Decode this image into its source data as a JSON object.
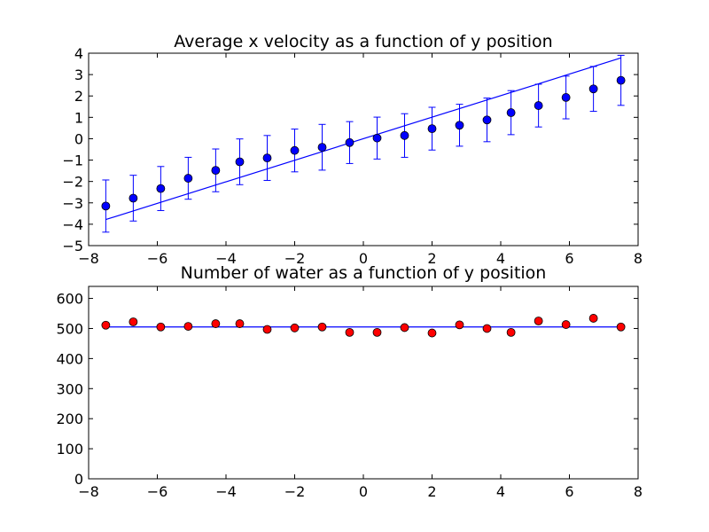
{
  "chart_data": [
    {
      "type": "scatter",
      "title": "Average x velocity as a function of y position",
      "xlabel": "",
      "ylabel": "",
      "xlim": [
        -8,
        8
      ],
      "ylim": [
        -5,
        4
      ],
      "xticks": [
        "−8",
        "−6",
        "−4",
        "−2",
        "0",
        "2",
        "4",
        "6",
        "8"
      ],
      "yticks": [
        "−5",
        "−4",
        "−3",
        "−2",
        "−1",
        "0",
        "1",
        "2",
        "3",
        "4"
      ],
      "grid": false,
      "marker_color": "#0000ff",
      "series": [
        {
          "type": "scatter_errorbar",
          "x": [
            -7.5,
            -6.7,
            -5.9,
            -5.1,
            -4.3,
            -3.6,
            -2.8,
            -2.0,
            -1.2,
            -0.4,
            0.4,
            1.2,
            2.0,
            2.8,
            3.6,
            4.3,
            5.1,
            5.9,
            6.7,
            7.5
          ],
          "y": [
            -3.15,
            -2.78,
            -2.33,
            -1.85,
            -1.48,
            -1.08,
            -0.9,
            -0.55,
            -0.4,
            -0.18,
            0.03,
            0.15,
            0.47,
            0.63,
            0.88,
            1.22,
            1.55,
            1.93,
            2.33,
            2.73
          ],
          "yerr": [
            1.22,
            1.07,
            1.03,
            0.98,
            1.0,
            1.07,
            1.05,
            1.0,
            1.07,
            0.98,
            0.98,
            1.02,
            1.0,
            0.98,
            1.02,
            1.03,
            1.0,
            1.0,
            1.05,
            1.17
          ]
        },
        {
          "type": "line",
          "x": [
            -7.5,
            7.5
          ],
          "y": [
            -3.78,
            3.78
          ]
        }
      ]
    },
    {
      "type": "scatter",
      "title": "Number of water as a function of y position",
      "xlabel": "",
      "ylabel": "",
      "xlim": [
        -8,
        8
      ],
      "ylim": [
        0,
        640
      ],
      "xticks": [
        "−8",
        "−6",
        "−4",
        "−2",
        "0",
        "2",
        "4",
        "6",
        "8"
      ],
      "yticks": [
        "0",
        "100",
        "200",
        "300",
        "400",
        "500",
        "600"
      ],
      "grid": false,
      "marker_color": "#ff0000",
      "line_color": "#0000ff",
      "series": [
        {
          "type": "scatter",
          "x": [
            -7.5,
            -6.7,
            -5.9,
            -5.1,
            -4.3,
            -3.6,
            -2.8,
            -2.0,
            -1.2,
            -0.4,
            0.4,
            1.2,
            2.0,
            2.8,
            3.6,
            4.3,
            5.1,
            5.9,
            6.7,
            7.5
          ],
          "y": [
            511,
            522,
            505,
            507,
            516,
            516,
            497,
            502,
            505,
            487,
            487,
            503,
            485,
            512,
            500,
            487,
            525,
            513,
            534,
            505
          ]
        },
        {
          "type": "line",
          "x": [
            -7.5,
            7.5
          ],
          "y": [
            505,
            505
          ]
        }
      ]
    }
  ]
}
